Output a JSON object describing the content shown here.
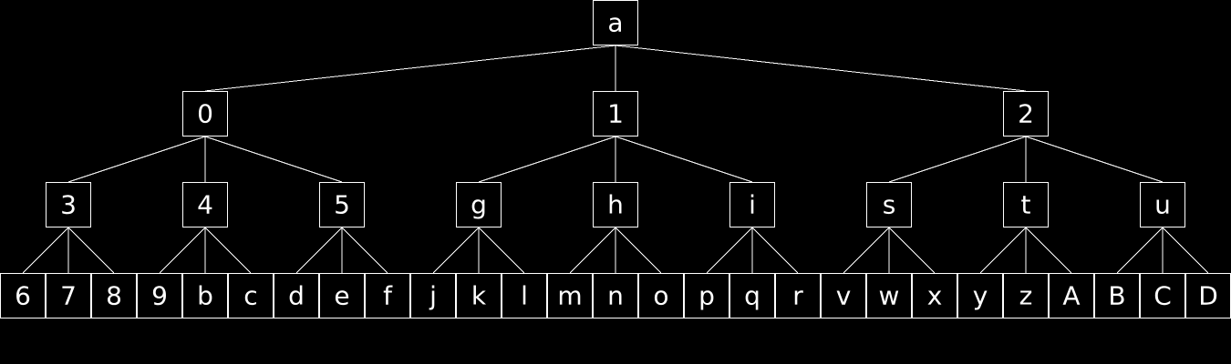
{
  "colors": {
    "background": "#000000",
    "line": "#ffffff",
    "text": "#ffffff"
  },
  "tree": {
    "label": "a",
    "children": [
      {
        "label": "0",
        "children": [
          {
            "label": "3",
            "children": [
              {
                "label": "6"
              },
              {
                "label": "7"
              },
              {
                "label": "8"
              }
            ]
          },
          {
            "label": "4",
            "children": [
              {
                "label": "9"
              },
              {
                "label": "b"
              },
              {
                "label": "c"
              }
            ]
          },
          {
            "label": "5",
            "children": [
              {
                "label": "d"
              },
              {
                "label": "e"
              },
              {
                "label": "f"
              }
            ]
          }
        ]
      },
      {
        "label": "1",
        "children": [
          {
            "label": "g",
            "children": [
              {
                "label": "j"
              },
              {
                "label": "k"
              },
              {
                "label": "l"
              }
            ]
          },
          {
            "label": "h",
            "children": [
              {
                "label": "m"
              },
              {
                "label": "n"
              },
              {
                "label": "o"
              }
            ]
          },
          {
            "label": "i",
            "children": [
              {
                "label": "p"
              },
              {
                "label": "q"
              },
              {
                "label": "r"
              }
            ]
          }
        ]
      },
      {
        "label": "2",
        "children": [
          {
            "label": "s",
            "children": [
              {
                "label": "v"
              },
              {
                "label": "w"
              },
              {
                "label": "x"
              }
            ]
          },
          {
            "label": "t",
            "children": [
              {
                "label": "y"
              },
              {
                "label": "z"
              },
              {
                "label": "A"
              }
            ]
          },
          {
            "label": "u",
            "children": [
              {
                "label": "B"
              },
              {
                "label": "C"
              },
              {
                "label": "D"
              }
            ]
          }
        ]
      }
    ]
  }
}
